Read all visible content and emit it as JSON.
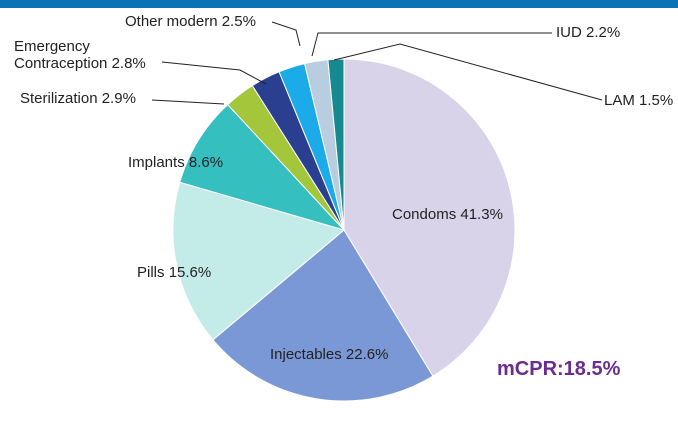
{
  "chart_data": {
    "type": "pie",
    "categories": [
      "Condoms",
      "Injectables",
      "Pills",
      "Implants",
      "Sterilization",
      "Emergency Contraception",
      "Other modern",
      "IUD",
      "LAM"
    ],
    "values": [
      41.3,
      22.6,
      15.6,
      8.6,
      2.9,
      2.8,
      2.5,
      2.2,
      1.5
    ],
    "value_labels": [
      "41.3%",
      "22.6%",
      "15.6%",
      "8.6%",
      "2.9%",
      "2.8%",
      "2.5%",
      "2.2%",
      "1.5%"
    ],
    "colors": [
      "#d9d3ea",
      "#7b98d6",
      "#c3ece8",
      "#35bfbf",
      "#a3c63a",
      "#2a3f8f",
      "#1aabe8",
      "#b8cde0",
      "#168a8f"
    ],
    "annotation": "mCPR:18.5%"
  }
}
